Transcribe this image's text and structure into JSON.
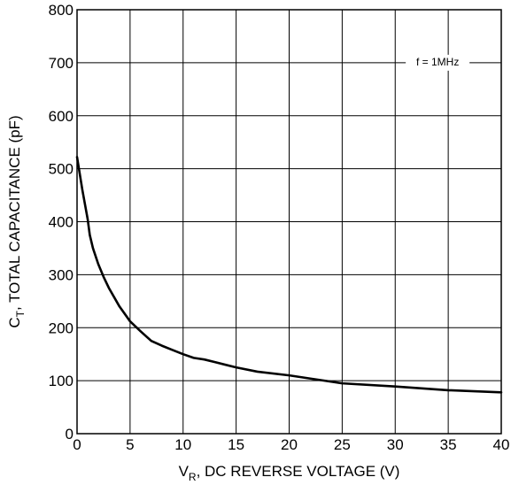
{
  "chart_data": {
    "type": "line",
    "title": "",
    "xlabel": {
      "main": "V",
      "sub": "R",
      "rest": ", DC REVERSE VOLTAGE (V)"
    },
    "ylabel": {
      "main": "C",
      "sub": "T",
      "rest": ", TOTAL CAPACITANCE (pF)"
    },
    "xlim": [
      0,
      40
    ],
    "ylim": [
      0,
      800
    ],
    "xticks": [
      0,
      5,
      10,
      15,
      20,
      25,
      30,
      35,
      40
    ],
    "yticks": [
      0,
      100,
      200,
      300,
      400,
      500,
      600,
      700,
      800
    ],
    "xtick_labels": [
      "0",
      "5",
      "10",
      "15",
      "20",
      "25",
      "30",
      "35",
      "40"
    ],
    "ytick_labels": [
      "0",
      "100",
      "200",
      "300",
      "400",
      "500",
      "600",
      "700",
      "800"
    ],
    "grid": true,
    "annotation": {
      "text": "f = 1MHz",
      "at": [
        34,
        700
      ]
    },
    "series": [
      {
        "x": [
          0,
          0.5,
          1,
          1.2,
          1.5,
          2,
          2.5,
          3,
          4,
          5,
          6,
          7,
          8,
          9,
          10,
          11,
          12,
          13,
          15,
          17,
          20,
          22,
          25,
          30,
          35,
          40
        ],
        "y": [
          522,
          460,
          405,
          375,
          350,
          320,
          296,
          275,
          240,
          212,
          193,
          175,
          166,
          158,
          150,
          143,
          140,
          135,
          125,
          117,
          110,
          104,
          95,
          89,
          82,
          78
        ]
      }
    ]
  }
}
